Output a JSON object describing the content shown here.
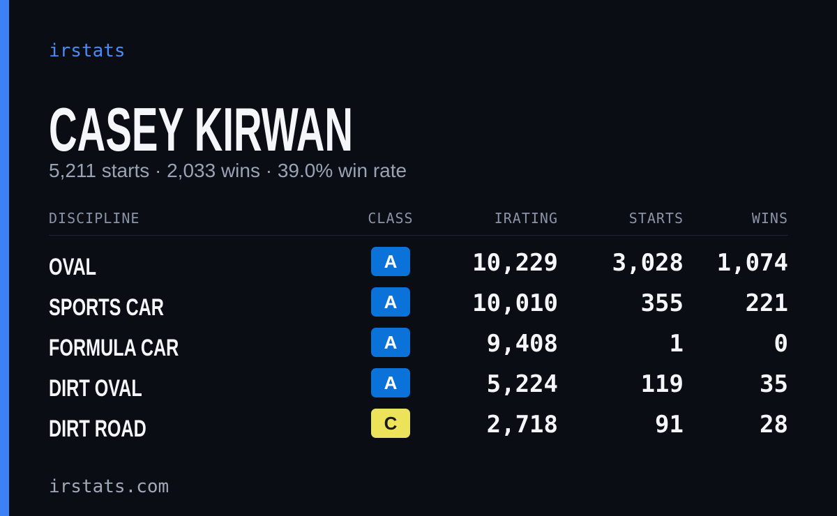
{
  "brand": "irstats",
  "driver": {
    "name": "CASEY KIRWAN",
    "summary": "5,211 starts · 2,033 wins · 39.0% win rate"
  },
  "table": {
    "headers": [
      "DISCIPLINE",
      "CLASS",
      "IRATING",
      "STARTS",
      "WINS"
    ],
    "rows": [
      {
        "discipline": "OVAL",
        "class": "A",
        "class_color": "#0b72d9",
        "irating": "10,229",
        "starts": "3,028",
        "wins": "1,074"
      },
      {
        "discipline": "SPORTS CAR",
        "class": "A",
        "class_color": "#0b72d9",
        "irating": "10,010",
        "starts": "355",
        "wins": "221"
      },
      {
        "discipline": "FORMULA CAR",
        "class": "A",
        "class_color": "#0b72d9",
        "irating": "9,408",
        "starts": "1",
        "wins": "0"
      },
      {
        "discipline": "DIRT OVAL",
        "class": "A",
        "class_color": "#0b72d9",
        "irating": "5,224",
        "starts": "119",
        "wins": "35"
      },
      {
        "discipline": "DIRT ROAD",
        "class": "C",
        "class_color": "#ede35a",
        "irating": "2,718",
        "starts": "91",
        "wins": "28"
      }
    ]
  },
  "footer": "irstats.com"
}
